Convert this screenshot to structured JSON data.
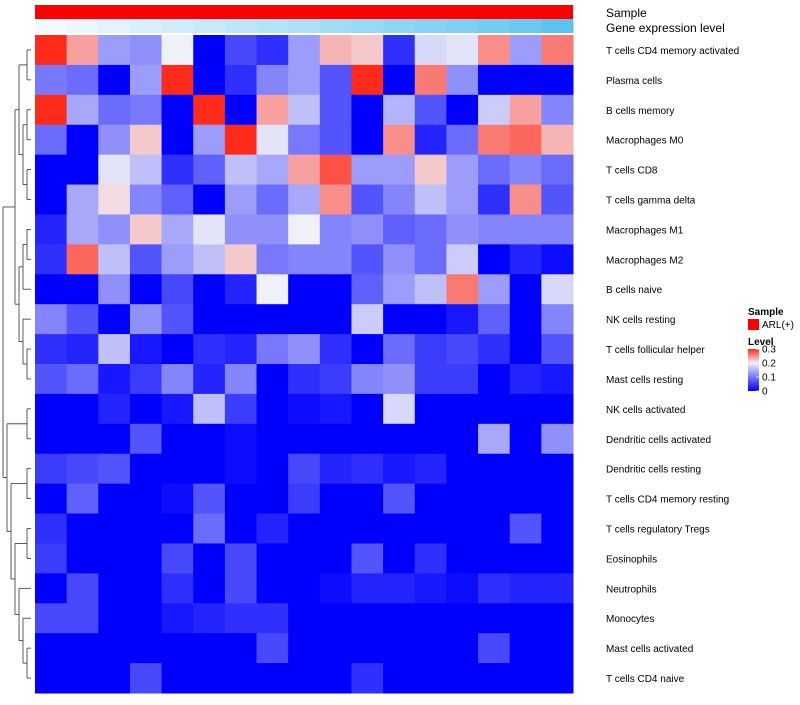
{
  "chart_data": {
    "type": "heatmap",
    "title": "",
    "annotation_rows": [
      {
        "name": "Sample",
        "label": "Sample"
      },
      {
        "name": "Gene expression level",
        "label": "Gene expression level"
      }
    ],
    "rows": [
      "T cells CD4 memory activated",
      "Plasma cells",
      "B cells memory",
      "Macrophages M0",
      "T cells CD8",
      "T cells gamma delta",
      "Macrophages M1",
      "Macrophages M2",
      "B cells naive",
      "NK cells resting",
      "T cells follicular helper",
      "Mast cells resting",
      "NK cells activated",
      "Dendritic cells activated",
      "Dendritic cells resting",
      "T cells CD4 memory resting",
      "T cells regulatory  Tregs",
      "Eosinophils",
      "Neutrophils",
      "Monocytes",
      "Mast cells activated",
      "T cells CD4 naive"
    ],
    "values": [
      [
        0.3,
        0.24,
        0.13,
        0.12,
        0.2,
        0.0,
        0.06,
        0.04,
        0.13,
        0.23,
        0.22,
        0.04,
        0.18,
        0.19,
        0.25,
        0.13,
        0.26
      ],
      [
        0.1,
        0.09,
        0.0,
        0.13,
        0.3,
        0.0,
        0.04,
        0.11,
        0.13,
        0.07,
        0.3,
        0.0,
        0.26,
        0.12,
        0.0,
        0.0,
        0.0
      ],
      [
        0.3,
        0.14,
        0.09,
        0.1,
        0.0,
        0.3,
        0.0,
        0.24,
        0.16,
        0.07,
        0.0,
        0.15,
        0.07,
        0.0,
        0.17,
        0.24,
        0.11
      ],
      [
        0.09,
        0.0,
        0.12,
        0.22,
        0.0,
        0.13,
        0.3,
        0.19,
        0.1,
        0.07,
        0.0,
        0.25,
        0.03,
        0.09,
        0.26,
        0.27,
        0.23
      ],
      [
        0.0,
        0.0,
        0.19,
        0.16,
        0.04,
        0.08,
        0.16,
        0.14,
        0.24,
        0.28,
        0.13,
        0.13,
        0.22,
        0.13,
        0.09,
        0.11,
        0.09
      ],
      [
        0.0,
        0.14,
        0.21,
        0.11,
        0.08,
        0.0,
        0.13,
        0.09,
        0.14,
        0.25,
        0.07,
        0.11,
        0.16,
        0.13,
        0.04,
        0.25,
        0.07
      ],
      [
        0.03,
        0.14,
        0.12,
        0.22,
        0.14,
        0.19,
        0.12,
        0.12,
        0.2,
        0.11,
        0.12,
        0.08,
        0.09,
        0.12,
        0.11,
        0.11,
        0.11
      ],
      [
        0.04,
        0.27,
        0.16,
        0.07,
        0.13,
        0.16,
        0.22,
        0.1,
        0.11,
        0.11,
        0.07,
        0.12,
        0.09,
        0.17,
        0.0,
        0.03,
        0.01
      ],
      [
        0.0,
        0.0,
        0.12,
        0.0,
        0.06,
        0.0,
        0.03,
        0.2,
        0.0,
        0.0,
        0.08,
        0.13,
        0.16,
        0.26,
        0.13,
        0.0,
        0.18
      ],
      [
        0.11,
        0.07,
        0.0,
        0.12,
        0.07,
        0.0,
        0.0,
        0.0,
        0.0,
        0.0,
        0.17,
        0.0,
        0.0,
        0.02,
        0.08,
        0.0,
        0.11
      ],
      [
        0.04,
        0.03,
        0.16,
        0.02,
        0.0,
        0.04,
        0.03,
        0.1,
        0.12,
        0.04,
        0.0,
        0.09,
        0.05,
        0.06,
        0.04,
        0.0,
        0.07
      ],
      [
        0.07,
        0.09,
        0.02,
        0.05,
        0.11,
        0.03,
        0.11,
        0.0,
        0.04,
        0.05,
        0.11,
        0.12,
        0.05,
        0.05,
        0.0,
        0.03,
        0.02
      ],
      [
        0.0,
        0.0,
        0.03,
        0.0,
        0.02,
        0.16,
        0.05,
        0.0,
        0.01,
        0.02,
        0.0,
        0.18,
        0.0,
        0.0,
        0.0,
        0.0,
        0.0
      ],
      [
        0.0,
        0.0,
        0.0,
        0.07,
        0.0,
        0.0,
        0.01,
        0.0,
        0.0,
        0.0,
        0.0,
        0.0,
        0.0,
        0.0,
        0.14,
        0.0,
        0.12
      ],
      [
        0.05,
        0.06,
        0.07,
        0.0,
        0.0,
        0.0,
        0.01,
        0.0,
        0.06,
        0.03,
        0.04,
        0.02,
        0.03,
        0.0,
        0.0,
        0.0,
        0.0
      ],
      [
        0.0,
        0.08,
        0.0,
        0.0,
        0.01,
        0.07,
        0.0,
        0.0,
        0.05,
        0.0,
        0.0,
        0.07,
        0.0,
        0.0,
        0.0,
        0.0,
        0.0
      ],
      [
        0.04,
        0.0,
        0.0,
        0.0,
        0.0,
        0.09,
        0.0,
        0.03,
        0.0,
        0.0,
        0.0,
        0.0,
        0.0,
        0.0,
        0.0,
        0.07,
        0.0
      ],
      [
        0.05,
        0.0,
        0.0,
        0.0,
        0.06,
        0.0,
        0.06,
        0.0,
        0.0,
        0.0,
        0.07,
        0.0,
        0.04,
        0.0,
        0.0,
        0.0,
        0.0
      ],
      [
        0.0,
        0.06,
        0.0,
        0.0,
        0.04,
        0.0,
        0.06,
        0.0,
        0.0,
        0.01,
        0.03,
        0.03,
        0.02,
        0.01,
        0.04,
        0.03,
        0.03
      ],
      [
        0.06,
        0.06,
        0.0,
        0.0,
        0.02,
        0.03,
        0.04,
        0.04,
        0.0,
        0.0,
        0.0,
        0.0,
        0.0,
        0.0,
        0.0,
        0.0,
        0.0
      ],
      [
        0.0,
        0.0,
        0.0,
        0.0,
        0.0,
        0.0,
        0.0,
        0.06,
        0.0,
        0.0,
        0.0,
        0.0,
        0.0,
        0.0,
        0.06,
        0.0,
        0.0
      ],
      [
        0.0,
        0.0,
        0.0,
        0.06,
        0.0,
        0.0,
        0.0,
        0.0,
        0.0,
        0.0,
        0.04,
        0.0,
        0.0,
        0.0,
        0.0,
        0.0,
        0.0
      ]
    ],
    "sample_group": "ARL(+)",
    "sample_color": "#ff0000",
    "gene_expression_level": [
      0.0,
      0.06,
      0.12,
      0.18,
      0.24,
      0.3,
      0.36,
      0.42,
      0.48,
      0.54,
      0.6,
      0.66,
      0.72,
      0.78,
      0.84,
      0.9,
      1.0
    ],
    "gene_expression_colors": {
      "low": "#f4fafe",
      "high": "#5bc3f0"
    },
    "color_scale": {
      "low": "#0000ff",
      "mid": "#f0f0f8",
      "high": "#ff2b1a",
      "min": 0,
      "mid_value": 0.2,
      "max": 0.3
    },
    "legend": {
      "sample_title": "Sample",
      "sample_entry": "ARL(+)",
      "level_title": "Level",
      "ticks": [
        "0.3",
        "0.2",
        "0.1",
        "0"
      ],
      "tick_values": [
        0.3,
        0.2,
        0.1,
        0
      ],
      "placement": "right"
    }
  }
}
